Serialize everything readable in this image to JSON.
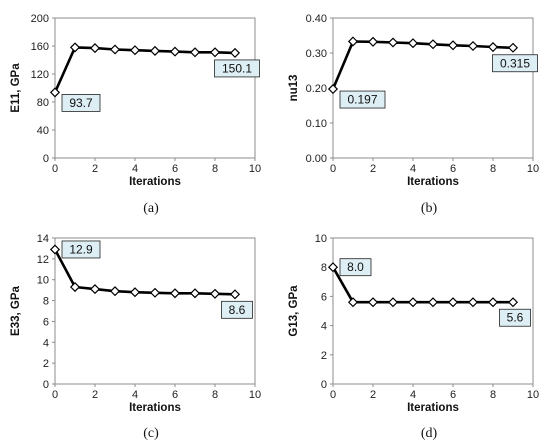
{
  "chart_data": [
    {
      "type": "line",
      "panel_label": "(a)",
      "xlabel": "Iterations",
      "ylabel": "E11, GPa",
      "xlim": [
        0,
        10
      ],
      "ylim": [
        0,
        200
      ],
      "xticks": [
        "0",
        "2",
        "4",
        "6",
        "8",
        "10"
      ],
      "yticks": [
        "0",
        "40",
        "80",
        "120",
        "160",
        "200"
      ],
      "x": [
        0,
        1,
        2,
        3,
        4,
        5,
        6,
        7,
        8,
        9
      ],
      "values": [
        93.7,
        158,
        157,
        155,
        154,
        153,
        152,
        151,
        151,
        150.1
      ],
      "marker": "diamond",
      "line_color": "#000000",
      "marker_fill": "#ffffff",
      "callout_fill": "#ddeef4",
      "grid": false,
      "callouts": [
        {
          "text": "93.7",
          "x": 0,
          "y": 93.7,
          "position": "right-below"
        },
        {
          "text": "150.1",
          "x": 9,
          "y": 150.1,
          "position": "below"
        }
      ]
    },
    {
      "type": "line",
      "panel_label": "(b)",
      "xlabel": "Iterations",
      "ylabel": "nu13",
      "xlim": [
        0,
        10
      ],
      "ylim": [
        0,
        0.4
      ],
      "xticks": [
        "0",
        "2",
        "4",
        "6",
        "8",
        "10"
      ],
      "yticks": [
        "0.00",
        "0.10",
        "0.20",
        "0.30",
        "0.40"
      ],
      "x": [
        0,
        1,
        2,
        3,
        4,
        5,
        6,
        7,
        8,
        9
      ],
      "values": [
        0.197,
        0.333,
        0.332,
        0.33,
        0.328,
        0.325,
        0.322,
        0.32,
        0.317,
        0.315
      ],
      "marker": "diamond",
      "line_color": "#000000",
      "marker_fill": "#ffffff",
      "callout_fill": "#ddeef4",
      "grid": false,
      "callouts": [
        {
          "text": "0.197",
          "x": 0,
          "y": 0.197,
          "position": "right-below"
        },
        {
          "text": "0.315",
          "x": 9,
          "y": 0.315,
          "position": "below"
        }
      ]
    },
    {
      "type": "line",
      "panel_label": "(c)",
      "xlabel": "Iterations",
      "ylabel": "E33, GPa",
      "xlim": [
        0,
        10
      ],
      "ylim": [
        0,
        14
      ],
      "xticks": [
        "0",
        "2",
        "4",
        "6",
        "8",
        "10"
      ],
      "yticks": [
        "0",
        "2",
        "4",
        "6",
        "8",
        "10",
        "12",
        "14"
      ],
      "x": [
        0,
        1,
        2,
        3,
        4,
        5,
        6,
        7,
        8,
        9
      ],
      "values": [
        12.9,
        9.3,
        9.1,
        8.9,
        8.8,
        8.75,
        8.7,
        8.7,
        8.65,
        8.6
      ],
      "marker": "diamond",
      "line_color": "#000000",
      "marker_fill": "#ffffff",
      "callout_fill": "#ddeef4",
      "grid": false,
      "callouts": [
        {
          "text": "12.9",
          "x": 0,
          "y": 12.9,
          "position": "right"
        },
        {
          "text": "8.6",
          "x": 9,
          "y": 8.6,
          "position": "below"
        }
      ]
    },
    {
      "type": "line",
      "panel_label": "(d)",
      "xlabel": "Iterations",
      "ylabel": "G13, GPa",
      "xlim": [
        0,
        10
      ],
      "ylim": [
        0,
        10
      ],
      "xticks": [
        "0",
        "2",
        "4",
        "6",
        "8",
        "10"
      ],
      "yticks": [
        "0",
        "2",
        "4",
        "6",
        "8",
        "10"
      ],
      "x": [
        0,
        1,
        2,
        3,
        4,
        5,
        6,
        7,
        8,
        9
      ],
      "values": [
        8.0,
        5.6,
        5.6,
        5.6,
        5.6,
        5.6,
        5.6,
        5.6,
        5.6,
        5.6
      ],
      "marker": "diamond",
      "line_color": "#000000",
      "marker_fill": "#ffffff",
      "callout_fill": "#ddeef4",
      "grid": false,
      "callouts": [
        {
          "text": "8.0",
          "x": 0,
          "y": 8.0,
          "position": "right"
        },
        {
          "text": "5.6",
          "x": 9,
          "y": 5.6,
          "position": "below"
        }
      ]
    }
  ]
}
